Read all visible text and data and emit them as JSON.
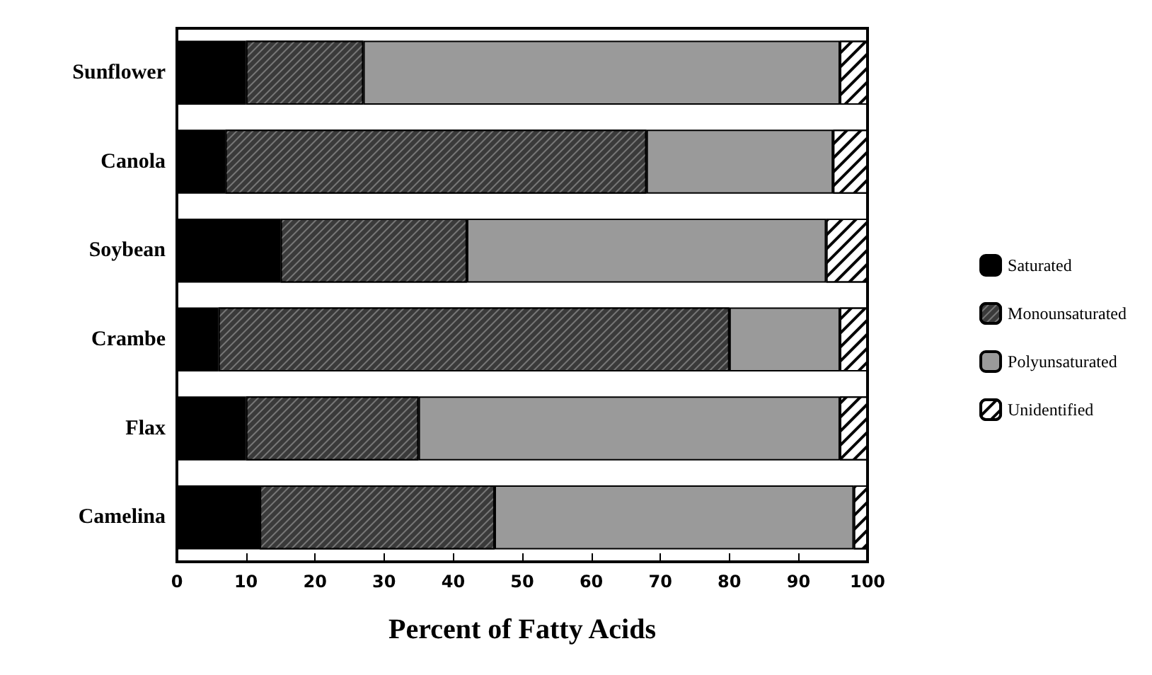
{
  "chart_data": {
    "type": "bar",
    "orientation": "horizontal",
    "stacked": true,
    "xlabel": "Percent of Fatty Acids",
    "categories": [
      "Sunflower",
      "Canola",
      "Soybean",
      "Crambe",
      "Flax",
      "Camelina"
    ],
    "series": [
      {
        "name": "Saturated",
        "color": "#000000",
        "values": [
          10,
          7,
          15,
          6,
          10,
          12
        ]
      },
      {
        "name": "Monounsaturated",
        "color": "#3a3a3a",
        "values": [
          17,
          61,
          27,
          74,
          25,
          34
        ]
      },
      {
        "name": "Polyunsaturated",
        "color": "#9a9a9a",
        "values": [
          69,
          27,
          52,
          16,
          61,
          52
        ]
      },
      {
        "name": "Unidentified",
        "color": "#ffffff",
        "values": [
          4,
          5,
          6,
          4,
          4,
          2
        ]
      }
    ],
    "xlim": [
      0,
      100
    ],
    "xticks": [
      0,
      10,
      20,
      30,
      40,
      50,
      60,
      70,
      80,
      90,
      100
    ],
    "grid": false,
    "legend": "right"
  }
}
